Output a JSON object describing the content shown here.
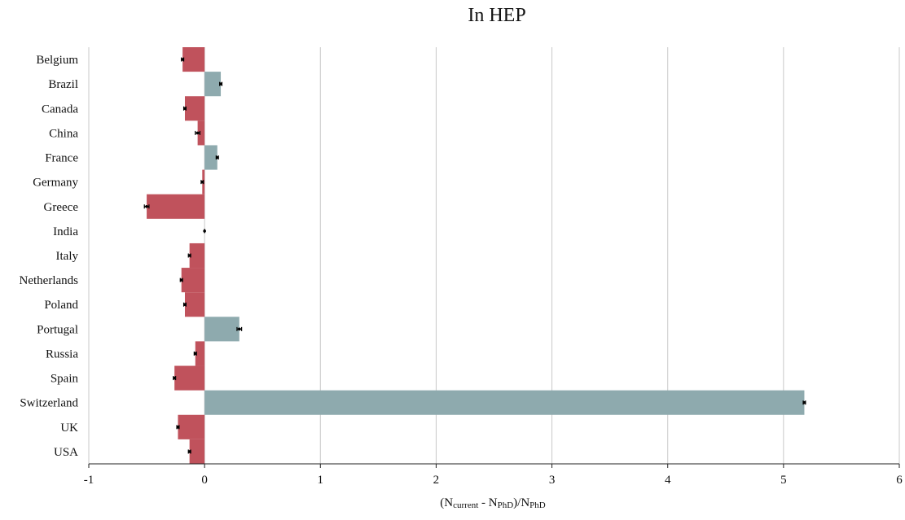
{
  "chart_data": {
    "type": "bar",
    "orientation": "horizontal",
    "title": "In HEP",
    "xlabel": {
      "n1": "N",
      "sub1": "current",
      "mid": " - N",
      "sub2": "PhD",
      "mid2": ")/N",
      "sub3": "PhD"
    },
    "categories": [
      "Belgium",
      "Brazil",
      "Canada",
      "China",
      "France",
      "Germany",
      "Greece",
      "India",
      "Italy",
      "Netherlands",
      "Poland",
      "Portugal",
      "Russia",
      "Spain",
      "Switzerland",
      "UK",
      "USA"
    ],
    "values": [
      -0.19,
      0.14,
      -0.17,
      -0.06,
      0.11,
      -0.02,
      -0.5,
      0.0,
      -0.13,
      -0.2,
      -0.17,
      0.3,
      -0.08,
      -0.26,
      5.18,
      -0.23,
      -0.13
    ],
    "errors": [
      0.01,
      0.01,
      0.01,
      0.02,
      0.01,
      0.01,
      0.02,
      0.0,
      0.01,
      0.01,
      0.01,
      0.02,
      0.01,
      0.01,
      0.01,
      0.01,
      0.01
    ],
    "xlim": [
      -1,
      6
    ],
    "xticks": [
      "-1",
      "0",
      "1",
      "2",
      "3",
      "4",
      "5",
      "6"
    ],
    "grid": "vertical",
    "colors": {
      "negative": "#c0525c",
      "positive": "#8eaaae",
      "grid": "#c8c8c8",
      "axis": "#222222"
    }
  }
}
